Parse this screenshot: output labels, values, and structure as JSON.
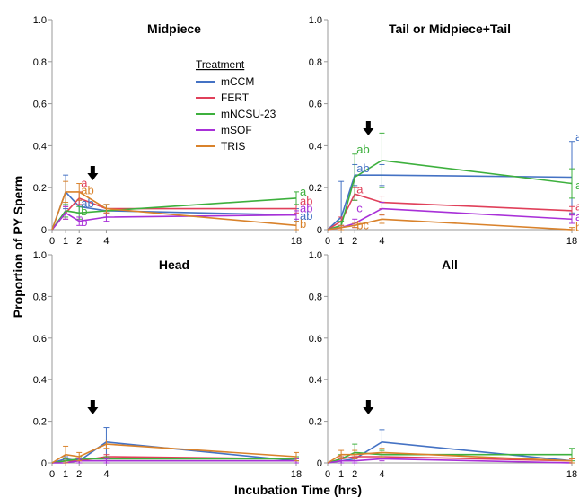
{
  "figure": {
    "ylabel": "Proportion of PY Sperm",
    "xlabel": "Incubation Time (hrs)",
    "legend_title": "Treatment",
    "legend_placement": "inside Midpiece panel, right"
  },
  "colors": {
    "mCCM": "#4472C4",
    "FERT": "#E0405A",
    "mNCSU-23": "#3DB03D",
    "mSOF": "#A830D8",
    "TRIS": "#D9822B"
  },
  "chart_data": [
    {
      "type": "line",
      "title": "Midpiece",
      "x": [
        0,
        1,
        2,
        4,
        18
      ],
      "xticks": [
        "0",
        "1",
        "2",
        "4",
        "18"
      ],
      "yticks": [
        "0",
        "0.2",
        "0.4",
        "0.6",
        "0.8",
        "1.0"
      ],
      "ylim": [
        0,
        1
      ],
      "grid": false,
      "series": [
        {
          "name": "mCCM",
          "values": [
            0,
            0.18,
            0.11,
            0.09,
            0.07
          ],
          "err": [
            0,
            0.08,
            0.03,
            0.03,
            0.03
          ]
        },
        {
          "name": "FERT",
          "values": [
            0,
            0.08,
            0.15,
            0.1,
            0.1
          ],
          "err": [
            0,
            0.03,
            0.03,
            0.02,
            0.02
          ]
        },
        {
          "name": "mNCSU-23",
          "values": [
            0,
            0.09,
            0.08,
            0.09,
            0.15
          ],
          "err": [
            0,
            0.03,
            0.03,
            0.03,
            0.03
          ]
        },
        {
          "name": "mSOF",
          "values": [
            0,
            0.08,
            0.04,
            0.06,
            0.07
          ],
          "err": [
            0,
            0.03,
            0.02,
            0.02,
            0.02
          ]
        },
        {
          "name": "TRIS",
          "values": [
            0,
            0.18,
            0.18,
            0.1,
            0.02
          ],
          "err": [
            0,
            0.05,
            0.04,
            0.02,
            0.02
          ]
        }
      ],
      "arrow_x": 3,
      "annotations": [
        {
          "text": "a",
          "series": "FERT",
          "x": 2,
          "y": 0.22
        },
        {
          "text": "ab",
          "series": "TRIS",
          "x": 2,
          "y": 0.185
        },
        {
          "text": "ab",
          "series": "mCCM",
          "x": 2,
          "y": 0.125
        },
        {
          "text": "b",
          "series": "mNCSU-23",
          "x": 2,
          "y": 0.085
        },
        {
          "text": "b",
          "series": "mSOF",
          "x": 2,
          "y": 0.035
        },
        {
          "text": "a",
          "series": "mNCSU-23",
          "x": 18,
          "y": 0.18
        },
        {
          "text": "ab",
          "series": "FERT",
          "x": 18,
          "y": 0.135
        },
        {
          "text": "ab",
          "series": "mSOF",
          "x": 18,
          "y": 0.1
        },
        {
          "text": "ab",
          "series": "mCCM",
          "x": 18,
          "y": 0.065
        },
        {
          "text": "b",
          "series": "TRIS",
          "x": 18,
          "y": 0.025
        }
      ]
    },
    {
      "type": "line",
      "title": "Tail or Midpiece+Tail",
      "x": [
        0,
        1,
        2,
        4,
        18
      ],
      "xticks": [
        "0",
        "1",
        "2",
        "4",
        "18"
      ],
      "yticks": [
        "0",
        "0.2",
        "0.4",
        "0.6",
        "0.8",
        "1.0"
      ],
      "ylim": [
        0,
        1
      ],
      "grid": false,
      "series": [
        {
          "name": "mCCM",
          "values": [
            0,
            0.06,
            0.26,
            0.26,
            0.25
          ],
          "err": [
            0,
            0.17,
            0.05,
            0.05,
            0.17
          ]
        },
        {
          "name": "FERT",
          "values": [
            0,
            0.04,
            0.17,
            0.13,
            0.09
          ],
          "err": [
            0,
            0.02,
            0.03,
            0.03,
            0.02
          ]
        },
        {
          "name": "mNCSU-23",
          "values": [
            0,
            0.02,
            0.25,
            0.33,
            0.22
          ],
          "err": [
            0,
            0.02,
            0.11,
            0.13,
            0.07
          ]
        },
        {
          "name": "mSOF",
          "values": [
            0,
            0.01,
            0.03,
            0.1,
            0.05
          ],
          "err": [
            0,
            0.01,
            0.02,
            0.03,
            0.02
          ]
        },
        {
          "name": "TRIS",
          "values": [
            0,
            0.01,
            0.02,
            0.05,
            0.0
          ],
          "err": [
            0,
            0.01,
            0.01,
            0.02,
            0.01
          ]
        }
      ],
      "arrow_x": 3,
      "annotations": [
        {
          "text": "ab",
          "series": "mNCSU-23",
          "x": 2,
          "y": 0.38
        },
        {
          "text": "ab",
          "series": "mCCM",
          "x": 2,
          "y": 0.29
        },
        {
          "text": "a",
          "series": "FERT",
          "x": 2,
          "y": 0.19
        },
        {
          "text": "c",
          "series": "mSOF",
          "x": 2,
          "y": 0.1
        },
        {
          "text": "bc",
          "series": "TRIS",
          "x": 2,
          "y": 0.02
        },
        {
          "text": "ab",
          "series": "mCCM",
          "x": 18,
          "y": 0.44
        },
        {
          "text": "a",
          "series": "mNCSU-23",
          "x": 18,
          "y": 0.21
        },
        {
          "text": "ab",
          "series": "FERT",
          "x": 18,
          "y": 0.11
        },
        {
          "text": "ab",
          "series": "mSOF",
          "x": 18,
          "y": 0.06
        },
        {
          "text": "b",
          "series": "TRIS",
          "x": 18,
          "y": 0.01
        }
      ]
    },
    {
      "type": "line",
      "title": "Head",
      "x": [
        0,
        1,
        2,
        4,
        18
      ],
      "xticks": [
        "0",
        "1",
        "2",
        "4",
        "18"
      ],
      "yticks": [
        "0",
        "0.2",
        "0.4",
        "0.6",
        "0.8",
        "1.0"
      ],
      "ylim": [
        0,
        1
      ],
      "grid": false,
      "series": [
        {
          "name": "mCCM",
          "values": [
            0,
            0.02,
            0.01,
            0.1,
            0.01
          ],
          "err": [
            0,
            0.01,
            0.01,
            0.07,
            0.01
          ]
        },
        {
          "name": "FERT",
          "values": [
            0,
            0.01,
            0.01,
            0.03,
            0.02
          ],
          "err": [
            0,
            0.01,
            0.01,
            0.01,
            0.01
          ]
        },
        {
          "name": "mNCSU-23",
          "values": [
            0,
            0.01,
            0.02,
            0.02,
            0.02
          ],
          "err": [
            0,
            0.01,
            0.01,
            0.01,
            0.01
          ]
        },
        {
          "name": "mSOF",
          "values": [
            0,
            0.0,
            0.01,
            0.01,
            0.01
          ],
          "err": [
            0,
            0.0,
            0.01,
            0.01,
            0.01
          ]
        },
        {
          "name": "TRIS",
          "values": [
            0,
            0.04,
            0.03,
            0.09,
            0.03
          ],
          "err": [
            0,
            0.04,
            0.02,
            0.02,
            0.02
          ]
        }
      ],
      "arrow_x": 3,
      "annotations": []
    },
    {
      "type": "line",
      "title": "All",
      "x": [
        0,
        1,
        2,
        4,
        18
      ],
      "xticks": [
        "0",
        "1",
        "2",
        "4",
        "18"
      ],
      "yticks": [
        "0",
        "0.2",
        "0.4",
        "0.6",
        "0.8",
        "1.0"
      ],
      "ylim": [
        0,
        1
      ],
      "grid": false,
      "series": [
        {
          "name": "mCCM",
          "values": [
            0,
            0.01,
            0.02,
            0.1,
            0.01
          ],
          "err": [
            0,
            0.01,
            0.01,
            0.06,
            0.01
          ]
        },
        {
          "name": "FERT",
          "values": [
            0,
            0.02,
            0.03,
            0.03,
            0.01
          ],
          "err": [
            0,
            0.01,
            0.01,
            0.01,
            0.01
          ]
        },
        {
          "name": "mNCSU-23",
          "values": [
            0,
            0.02,
            0.05,
            0.04,
            0.04
          ],
          "err": [
            0,
            0.02,
            0.04,
            0.02,
            0.03
          ]
        },
        {
          "name": "mSOF",
          "values": [
            0,
            0.01,
            0.01,
            0.02,
            0.0
          ],
          "err": [
            0,
            0.01,
            0.01,
            0.01,
            0.0
          ]
        },
        {
          "name": "TRIS",
          "values": [
            0,
            0.04,
            0.04,
            0.05,
            0.01
          ],
          "err": [
            0,
            0.02,
            0.02,
            0.02,
            0.01
          ]
        }
      ],
      "arrow_x": 3,
      "annotations": []
    }
  ]
}
